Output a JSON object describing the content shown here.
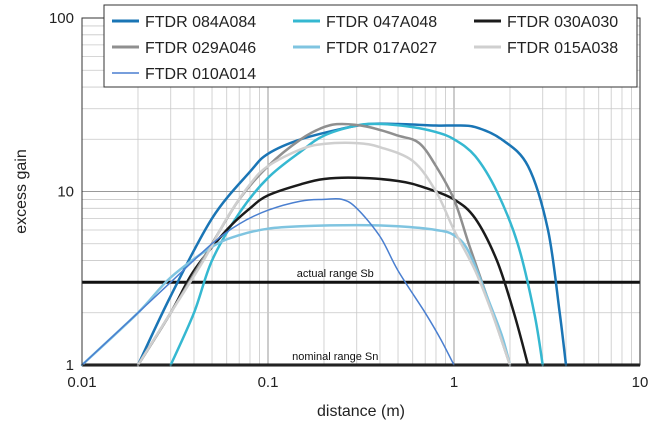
{
  "chart_data": {
    "type": "line",
    "title": "",
    "xlabel": "distance (m)",
    "ylabel": "excess gain",
    "xscale": "log",
    "yscale": "log",
    "xlim": [
      0.01,
      10
    ],
    "ylim": [
      1,
      100
    ],
    "grid": true,
    "legend_position": "top",
    "x_ticks": [
      "0.01",
      "0.1",
      "1",
      "10"
    ],
    "y_ticks": [
      "1",
      "10",
      "100"
    ],
    "series": [
      {
        "name": "FTDR 084A084",
        "color": "#1a75b5",
        "points": [
          [
            0.02,
            1
          ],
          [
            0.03,
            2.5
          ],
          [
            0.05,
            7
          ],
          [
            0.08,
            13
          ],
          [
            0.1,
            16.5
          ],
          [
            0.15,
            20
          ],
          [
            0.25,
            23
          ],
          [
            0.35,
            24.5
          ],
          [
            0.5,
            24.5
          ],
          [
            0.8,
            24
          ],
          [
            1,
            24
          ],
          [
            1.3,
            23.5
          ],
          [
            1.8,
            20
          ],
          [
            2.5,
            14
          ],
          [
            3.2,
            6
          ],
          [
            3.7,
            2
          ],
          [
            4,
            1
          ]
        ]
      },
      {
        "name": "FTDR 047A048",
        "color": "#35b8d1",
        "points": [
          [
            0.03,
            1
          ],
          [
            0.04,
            2
          ],
          [
            0.05,
            4
          ],
          [
            0.07,
            7.5
          ],
          [
            0.1,
            12
          ],
          [
            0.15,
            17
          ],
          [
            0.2,
            21
          ],
          [
            0.3,
            24
          ],
          [
            0.4,
            24.5
          ],
          [
            0.6,
            23.5
          ],
          [
            0.8,
            22
          ],
          [
            1,
            20
          ],
          [
            1.3,
            16
          ],
          [
            1.7,
            10
          ],
          [
            2.2,
            5
          ],
          [
            2.7,
            2
          ],
          [
            3,
            1
          ]
        ]
      },
      {
        "name": "FTDR 030A030",
        "color": "#1b1b1b",
        "points": [
          [
            0.02,
            1
          ],
          [
            0.03,
            2
          ],
          [
            0.04,
            3.5
          ],
          [
            0.06,
            6
          ],
          [
            0.08,
            8
          ],
          [
            0.1,
            9.5
          ],
          [
            0.15,
            11
          ],
          [
            0.2,
            11.8
          ],
          [
            0.3,
            12
          ],
          [
            0.5,
            11.5
          ],
          [
            0.7,
            10.5
          ],
          [
            1,
            9
          ],
          [
            1.3,
            7
          ],
          [
            1.7,
            4
          ],
          [
            2.1,
            2
          ],
          [
            2.5,
            1
          ]
        ]
      },
      {
        "name": "FTDR 029A046",
        "color": "#8f8f8f",
        "points": [
          [
            0.02,
            1
          ],
          [
            0.03,
            2
          ],
          [
            0.05,
            5
          ],
          [
            0.07,
            9
          ],
          [
            0.1,
            14
          ],
          [
            0.15,
            20
          ],
          [
            0.2,
            23.5
          ],
          [
            0.25,
            24.5
          ],
          [
            0.35,
            23.5
          ],
          [
            0.5,
            21
          ],
          [
            0.65,
            19
          ],
          [
            0.8,
            14
          ],
          [
            1,
            9
          ],
          [
            1.2,
            5
          ],
          [
            1.5,
            2.5
          ],
          [
            2,
            1
          ]
        ]
      },
      {
        "name": "FTDR 017A027",
        "color": "#7fc4e0",
        "points": [
          [
            0.01,
            1
          ],
          [
            0.02,
            2
          ],
          [
            0.03,
            3.2
          ],
          [
            0.05,
            4.8
          ],
          [
            0.07,
            5.6
          ],
          [
            0.1,
            6.1
          ],
          [
            0.15,
            6.3
          ],
          [
            0.3,
            6.4
          ],
          [
            0.5,
            6.3
          ],
          [
            0.8,
            6
          ],
          [
            1,
            5.6
          ],
          [
            1.2,
            4.5
          ],
          [
            1.5,
            2.5
          ],
          [
            1.8,
            1.5
          ],
          [
            2,
            1
          ]
        ]
      },
      {
        "name": "FTDR 015A038",
        "color": "#cfcfcf",
        "points": [
          [
            0.02,
            1
          ],
          [
            0.03,
            2
          ],
          [
            0.045,
            4
          ],
          [
            0.06,
            7
          ],
          [
            0.08,
            11
          ],
          [
            0.1,
            14
          ],
          [
            0.15,
            17.5
          ],
          [
            0.2,
            18.8
          ],
          [
            0.3,
            19
          ],
          [
            0.4,
            18
          ],
          [
            0.6,
            15
          ],
          [
            0.8,
            10
          ],
          [
            1,
            6
          ],
          [
            1.3,
            3.5
          ],
          [
            1.6,
            2
          ],
          [
            2,
            1
          ]
        ]
      },
      {
        "name": "FTDR 010A014",
        "color": "#4a7fd0",
        "points": [
          [
            0.01,
            1
          ],
          [
            0.02,
            2
          ],
          [
            0.03,
            3
          ],
          [
            0.05,
            5
          ],
          [
            0.07,
            6.5
          ],
          [
            0.1,
            7.8
          ],
          [
            0.15,
            8.8
          ],
          [
            0.2,
            9
          ],
          [
            0.25,
            9
          ],
          [
            0.3,
            8
          ],
          [
            0.4,
            5.5
          ],
          [
            0.5,
            3.5
          ],
          [
            0.7,
            2
          ],
          [
            0.85,
            1.4
          ],
          [
            1,
            1
          ]
        ]
      }
    ],
    "reference_lines": [
      {
        "label": "actual range Sb",
        "y": 3,
        "color": "#111111"
      },
      {
        "label": "nominal range Sn",
        "y": 1,
        "color": "#111111"
      }
    ]
  }
}
